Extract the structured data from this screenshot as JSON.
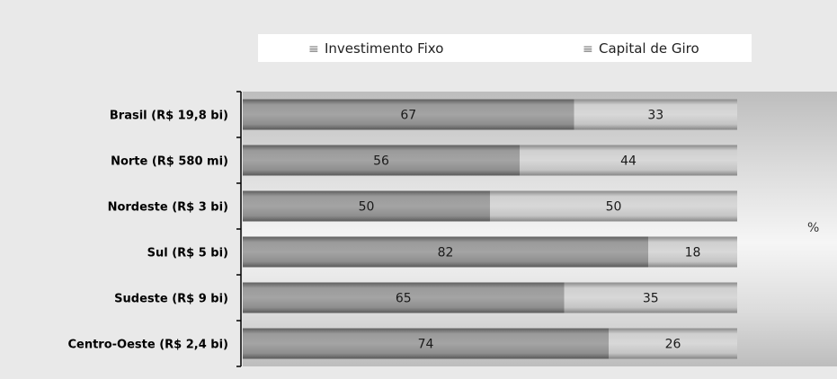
{
  "chart_data": {
    "type": "bar",
    "orientation": "horizontal",
    "stacked": true,
    "percent": true,
    "categories": [
      "Brasil (R$ 19,8 bi)",
      "Norte (R$ 580 mi)",
      "Nordeste (R$ 3 bi)",
      "Sul (R$ 5 bi)",
      "Sudeste (R$ 9 bi)",
      "Centro-Oeste (R$ 2,4 bi)"
    ],
    "series": [
      {
        "name": "Investimento Fixo",
        "values": [
          67,
          56,
          50,
          82,
          65,
          74
        ],
        "color": "#8c8c8c"
      },
      {
        "name": "Capital de Giro",
        "values": [
          33,
          44,
          50,
          18,
          35,
          26
        ],
        "color": "#c6c6c6"
      }
    ],
    "legend_marker": "≡",
    "unit_label": "%",
    "xlim": [
      0,
      100
    ],
    "legend": "top",
    "grid": false
  }
}
